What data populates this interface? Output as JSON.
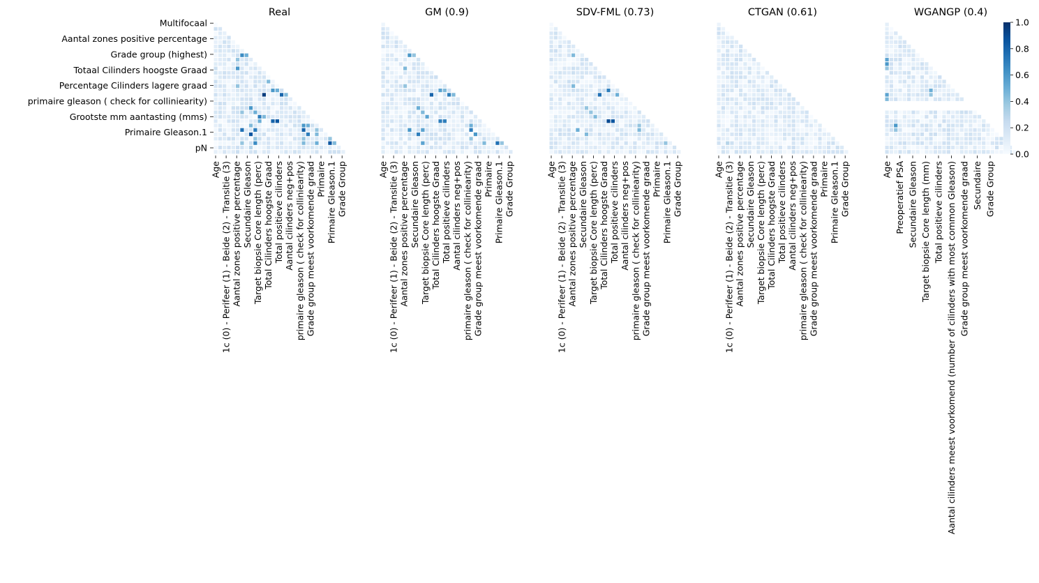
{
  "figure": {
    "colormap": "Blues",
    "cell_edge_color": "#ffffff",
    "colorbar": {
      "range": [
        0,
        1
      ],
      "ticks": [
        "0.0",
        "0.2",
        "0.4",
        "0.6",
        "0.8",
        "1.0"
      ]
    }
  },
  "chart_data": [
    {
      "type": "heatmap",
      "title": "Real",
      "matrix": "lower-triangle correlation matrix",
      "grid_size": 30,
      "y_tick_labels": [
        "Multifocaal",
        "Aantal zones positive percentage",
        "Grade group (highest)",
        "Totaal Cilinders hoogste Graad",
        "Percentage Cilinders lagere graad  ",
        "primaire gleason ( check for colliniearity)",
        "Grootste mm aantasting (mms)",
        "Primaire Gleason.1",
        "pN"
      ],
      "x_tick_labels": [
        "Age",
        "1c (0) - Perifeer (1) -  Beide (2) - Transitie (3)",
        "Aantal zones positive percentage",
        "Secundaire Gleason",
        "Target biopsie Core length (perc)",
        "Total Cilinders hoogste Graad",
        "Total positieve cilinders",
        "Aantal cilinders neg+pos",
        "primaire gleason ( check for colliniearity)",
        "Grade group meest voorkomende graad",
        "Primaire",
        "Primaire Gleason.1",
        "Grade Group"
      ],
      "strong_cells": [
        {
          "row": 7,
          "col": 6,
          "value": 0.65
        },
        {
          "row": 7,
          "col": 7,
          "value": 0.5
        },
        {
          "row": 8,
          "col": 5,
          "value": 0.4
        },
        {
          "row": 9,
          "col": 10,
          "value": 0.9
        },
        {
          "row": 9,
          "col": 11,
          "value": 0.4
        },
        {
          "row": 10,
          "col": 5,
          "value": 0.6
        },
        {
          "row": 10,
          "col": 12,
          "value": 0.5
        },
        {
          "row": 12,
          "col": 13,
          "value": 0.55
        },
        {
          "row": 13,
          "col": 12,
          "value": 0.45
        },
        {
          "row": 13,
          "col": 14,
          "value": 0.45
        },
        {
          "row": 14,
          "col": 5,
          "value": 0.4
        },
        {
          "row": 15,
          "col": 13,
          "value": 0.6
        },
        {
          "row": 15,
          "col": 14,
          "value": 0.5
        },
        {
          "row": 16,
          "col": 11,
          "value": 0.95
        },
        {
          "row": 16,
          "col": 15,
          "value": 0.8
        },
        {
          "row": 16,
          "col": 16,
          "value": 0.45
        },
        {
          "row": 19,
          "col": 8,
          "value": 0.6
        },
        {
          "row": 20,
          "col": 6,
          "value": 0.4
        },
        {
          "row": 20,
          "col": 9,
          "value": 0.5
        },
        {
          "row": 21,
          "col": 10,
          "value": 0.7
        },
        {
          "row": 21,
          "col": 11,
          "value": 0.45
        },
        {
          "row": 22,
          "col": 10,
          "value": 0.5
        },
        {
          "row": 22,
          "col": 13,
          "value": 0.8
        },
        {
          "row": 22,
          "col": 14,
          "value": 0.85
        },
        {
          "row": 23,
          "col": 8,
          "value": 0.45
        },
        {
          "row": 23,
          "col": 20,
          "value": 0.6
        },
        {
          "row": 23,
          "col": 21,
          "value": 0.5
        },
        {
          "row": 24,
          "col": 6,
          "value": 0.75
        },
        {
          "row": 24,
          "col": 9,
          "value": 0.7
        },
        {
          "row": 24,
          "col": 20,
          "value": 0.8
        },
        {
          "row": 24,
          "col": 23,
          "value": 0.4
        },
        {
          "row": 25,
          "col": 8,
          "value": 0.85
        },
        {
          "row": 25,
          "col": 21,
          "value": 0.7
        },
        {
          "row": 25,
          "col": 23,
          "value": 0.45
        },
        {
          "row": 26,
          "col": 9,
          "value": 0.4
        },
        {
          "row": 26,
          "col": 20,
          "value": 0.4
        },
        {
          "row": 26,
          "col": 26,
          "value": 0.4
        },
        {
          "row": 27,
          "col": 6,
          "value": 0.4
        },
        {
          "row": 27,
          "col": 9,
          "value": 0.65
        },
        {
          "row": 27,
          "col": 20,
          "value": 0.45
        },
        {
          "row": 27,
          "col": 23,
          "value": 0.5
        },
        {
          "row": 27,
          "col": 26,
          "value": 0.85
        },
        {
          "row": 27,
          "col": 27,
          "value": 0.45
        },
        {
          "row": 28,
          "col": 8,
          "value": 0.3
        }
      ]
    },
    {
      "type": "heatmap",
      "title": "GM (0.9)",
      "matrix": "lower-triangle correlation matrix",
      "grid_size": 30,
      "x_tick_labels": [
        "Age",
        "1c (0) - Perifeer (1) -  Beide (2) - Transitie (3)",
        "Aantal zones positive percentage",
        "Secundaire Gleason",
        "Target biopsie Core length (perc)",
        "Total Cilinders hoogste Graad",
        "Total positieve cilinders",
        "Aantal cilinders neg+pos",
        "primaire gleason ( check for colliniearity)",
        "Grade group meest voorkomende graad",
        "Primaire",
        "Primaire Gleason.1",
        "Grade Group"
      ],
      "strong_cells": [
        {
          "row": 7,
          "col": 6,
          "value": 0.6
        },
        {
          "row": 7,
          "col": 7,
          "value": 0.4
        },
        {
          "row": 9,
          "col": 10,
          "value": 0.75
        },
        {
          "row": 10,
          "col": 5,
          "value": 0.45
        },
        {
          "row": 10,
          "col": 12,
          "value": 0.4
        },
        {
          "row": 12,
          "col": 13,
          "value": 0.5
        },
        {
          "row": 13,
          "col": 14,
          "value": 0.4
        },
        {
          "row": 14,
          "col": 5,
          "value": 0.4
        },
        {
          "row": 15,
          "col": 13,
          "value": 0.55
        },
        {
          "row": 15,
          "col": 14,
          "value": 0.45
        },
        {
          "row": 16,
          "col": 11,
          "value": 0.8
        },
        {
          "row": 16,
          "col": 15,
          "value": 0.7
        },
        {
          "row": 16,
          "col": 16,
          "value": 0.45
        },
        {
          "row": 19,
          "col": 8,
          "value": 0.5
        },
        {
          "row": 20,
          "col": 9,
          "value": 0.45
        },
        {
          "row": 21,
          "col": 10,
          "value": 0.55
        },
        {
          "row": 22,
          "col": 13,
          "value": 0.7
        },
        {
          "row": 22,
          "col": 14,
          "value": 0.7
        },
        {
          "row": 23,
          "col": 20,
          "value": 0.5
        },
        {
          "row": 24,
          "col": 6,
          "value": 0.6
        },
        {
          "row": 24,
          "col": 9,
          "value": 0.55
        },
        {
          "row": 24,
          "col": 20,
          "value": 0.7
        },
        {
          "row": 25,
          "col": 8,
          "value": 0.7
        },
        {
          "row": 25,
          "col": 21,
          "value": 0.6
        },
        {
          "row": 26,
          "col": 20,
          "value": 0.4
        },
        {
          "row": 27,
          "col": 9,
          "value": 0.55
        },
        {
          "row": 27,
          "col": 23,
          "value": 0.45
        },
        {
          "row": 27,
          "col": 26,
          "value": 0.75
        },
        {
          "row": 27,
          "col": 27,
          "value": 0.4
        }
      ]
    },
    {
      "type": "heatmap",
      "title": "SDV-FML (0.73)",
      "matrix": "lower-triangle correlation matrix",
      "grid_size": 30,
      "x_tick_labels": [
        "Age",
        "1c (0) - Perifeer (1) -  Beide (2) - Transitie (3)",
        "Aantal zones positive percentage",
        "Secundaire Gleason",
        "Target biopsie Core length (perc)",
        "Total Cilinders hoogste Graad",
        "Total positieve cilinders",
        "Aantal cilinders neg+pos",
        "primaire gleason ( check for colliniearity)",
        "Grade group meest voorkomende graad",
        "Primaire",
        "Primaire Gleason.1",
        "Grade Group"
      ],
      "strong_cells": [
        {
          "row": 7,
          "col": 5,
          "value": 0.45
        },
        {
          "row": 9,
          "col": 10,
          "value": 0.5
        },
        {
          "row": 9,
          "col": 15,
          "value": 0.85
        },
        {
          "row": 12,
          "col": 13,
          "value": 0.6
        },
        {
          "row": 13,
          "col": 14,
          "value": 0.55
        },
        {
          "row": 14,
          "col": 5,
          "value": 0.45
        },
        {
          "row": 15,
          "col": 13,
          "value": 0.7
        },
        {
          "row": 16,
          "col": 11,
          "value": 0.75
        },
        {
          "row": 16,
          "col": 15,
          "value": 0.5
        },
        {
          "row": 19,
          "col": 8,
          "value": 0.4
        },
        {
          "row": 20,
          "col": 9,
          "value": 0.4
        },
        {
          "row": 21,
          "col": 10,
          "value": 0.45
        },
        {
          "row": 22,
          "col": 13,
          "value": 0.9
        },
        {
          "row": 22,
          "col": 14,
          "value": 0.85
        },
        {
          "row": 23,
          "col": 20,
          "value": 0.4
        },
        {
          "row": 24,
          "col": 6,
          "value": 0.5
        },
        {
          "row": 24,
          "col": 20,
          "value": 0.45
        },
        {
          "row": 25,
          "col": 8,
          "value": 0.45
        },
        {
          "row": 27,
          "col": 26,
          "value": 0.4
        }
      ]
    },
    {
      "type": "heatmap",
      "title": "CTGAN (0.61)",
      "matrix": "lower-triangle correlation matrix",
      "grid_size": 30,
      "x_tick_labels": [
        "Age",
        "1c (0) - Perifeer (1) -  Beide (2) - Transitie (3)",
        "Aantal zones positive percentage",
        "Secundaire Gleason",
        "Target biopsie Core length (perc)",
        "Total Cilinders hoogste Graad",
        "Total positieve cilinders",
        "Aantal cilinders neg+pos",
        "primaire gleason ( check for colliniearity)",
        "Grade group meest voorkomende graad",
        "Primaire",
        "Primaire Gleason.1",
        "Grade Group"
      ],
      "strong_cells": [
        {
          "row": 27,
          "col": 2,
          "value": 0.3
        }
      ]
    },
    {
      "type": "heatmap",
      "title": "WGANGP (0.4)",
      "matrix": "lower-triangle correlation matrix",
      "grid_size": 30,
      "x_tick_labels": [
        "Age",
        "Preoperatief PSA",
        "Secundaire Gleason",
        "Target biopsie Core length (mm)",
        "Total positieve cilinders",
        "Aantal cilinders meest voorkomend (number of cilinders with most common Gleason)",
        "Grade group meest voorkomende graad",
        "Secundaire",
        "Grade Group"
      ],
      "strong_cells": [
        {
          "row": 8,
          "col": 0,
          "value": 0.55
        },
        {
          "row": 9,
          "col": 0,
          "value": 0.6
        },
        {
          "row": 10,
          "col": 0,
          "value": 0.4
        },
        {
          "row": 16,
          "col": 0,
          "value": 0.55
        },
        {
          "row": 17,
          "col": 0,
          "value": 0.45
        },
        {
          "row": 7,
          "col": 9,
          "value": 0.55
        },
        {
          "row": 15,
          "col": 10,
          "value": 0.5
        },
        {
          "row": 16,
          "col": 10,
          "value": 0.4
        },
        {
          "row": 23,
          "col": 2,
          "value": 0.6
        },
        {
          "row": 24,
          "col": 2,
          "value": 0.4
        },
        {
          "row": 24,
          "col": 26,
          "value": 0.5
        }
      ]
    }
  ]
}
